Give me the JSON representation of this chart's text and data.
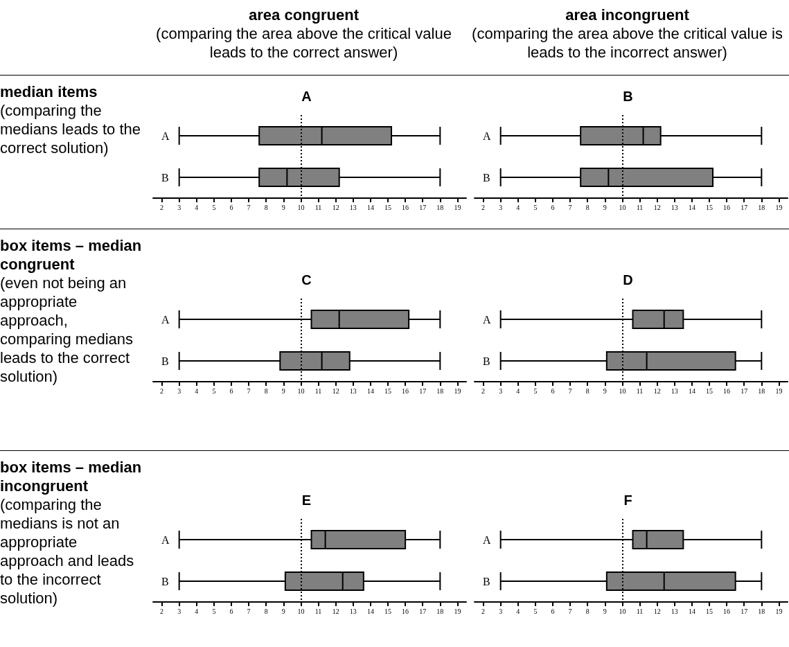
{
  "chart_data": [
    {
      "type": "box",
      "title": "A",
      "categories": [
        "A",
        "B"
      ],
      "orientation": "horizontal",
      "xlim": [
        1.5,
        19.5
      ],
      "xticks": [
        2,
        3,
        4,
        5,
        6,
        7,
        8,
        9,
        10,
        11,
        12,
        13,
        14,
        15,
        16,
        17,
        18,
        19
      ],
      "series": [
        {
          "color": "#808080",
          "boxes": [
            {
              "low": 3,
              "q1": 7.6,
              "median": 11.2,
              "q3": 15.2,
              "high": 18
            },
            {
              "low": 3,
              "q1": 7.6,
              "median": 9.2,
              "q3": 12.2,
              "high": 18
            }
          ]
        }
      ],
      "ref_lines": [
        {
          "axis": "x",
          "value": 10,
          "color": "#000000",
          "line_style": "dotted"
        }
      ],
      "annotations": [
        "area congruent\n(comparing the area above the critical value leads to the correct answer)",
        "median items\n(comparing the medians leads to the correct solution)"
      ]
    },
    {
      "type": "box",
      "title": "B",
      "categories": [
        "A",
        "B"
      ],
      "orientation": "horizontal",
      "xlim": [
        1.5,
        19.5
      ],
      "xticks": [
        2,
        3,
        4,
        5,
        6,
        7,
        8,
        9,
        10,
        11,
        12,
        13,
        14,
        15,
        16,
        17,
        18,
        19
      ],
      "series": [
        {
          "color": "#808080",
          "boxes": [
            {
              "low": 3,
              "q1": 7.6,
              "median": 11.2,
              "q3": 12.2,
              "high": 18
            },
            {
              "low": 3,
              "q1": 7.6,
              "median": 9.2,
              "q3": 15.2,
              "high": 18
            }
          ]
        }
      ],
      "ref_lines": [
        {
          "axis": "x",
          "value": 10,
          "color": "#000000",
          "line_style": "dotted"
        }
      ],
      "annotations": [
        "area incongruent\n(comparing the area above the critical value is leads to the incorrect answer)"
      ]
    },
    {
      "type": "box",
      "title": "C",
      "categories": [
        "A",
        "B"
      ],
      "orientation": "horizontal",
      "xlim": [
        1.5,
        19.5
      ],
      "xticks": [
        2,
        3,
        4,
        5,
        6,
        7,
        8,
        9,
        10,
        11,
        12,
        13,
        14,
        15,
        16,
        17,
        18,
        19
      ],
      "series": [
        {
          "color": "#808080",
          "boxes": [
            {
              "low": 3,
              "q1": 10.6,
              "median": 12.2,
              "q3": 16.2,
              "high": 18
            },
            {
              "low": 3,
              "q1": 8.8,
              "median": 11.2,
              "q3": 12.8,
              "high": 18
            }
          ]
        }
      ],
      "ref_lines": [
        {
          "axis": "x",
          "value": 10,
          "color": "#000000",
          "line_style": "dotted"
        }
      ],
      "annotations": [
        "box items – median congruent\n(even not being an appropriate approach, comparing medians leads to the correct solution)"
      ]
    },
    {
      "type": "box",
      "title": "D",
      "categories": [
        "A",
        "B"
      ],
      "orientation": "horizontal",
      "xlim": [
        1.5,
        19.5
      ],
      "xticks": [
        2,
        3,
        4,
        5,
        6,
        7,
        8,
        9,
        10,
        11,
        12,
        13,
        14,
        15,
        16,
        17,
        18,
        19
      ],
      "series": [
        {
          "color": "#808080",
          "boxes": [
            {
              "low": 3,
              "q1": 10.6,
              "median": 12.4,
              "q3": 13.5,
              "high": 18
            },
            {
              "low": 3,
              "q1": 9.1,
              "median": 11.4,
              "q3": 16.5,
              "high": 18
            }
          ]
        }
      ],
      "ref_lines": [
        {
          "axis": "x",
          "value": 10,
          "color": "#000000",
          "line_style": "dotted"
        }
      ]
    },
    {
      "type": "box",
      "title": "E",
      "categories": [
        "A",
        "B"
      ],
      "orientation": "horizontal",
      "xlim": [
        1.5,
        19.5
      ],
      "xticks": [
        2,
        3,
        4,
        5,
        6,
        7,
        8,
        9,
        10,
        11,
        12,
        13,
        14,
        15,
        16,
        17,
        18,
        19
      ],
      "series": [
        {
          "color": "#808080",
          "boxes": [
            {
              "low": 3,
              "q1": 10.6,
              "median": 11.4,
              "q3": 16.0,
              "high": 18
            },
            {
              "low": 3,
              "q1": 9.1,
              "median": 12.4,
              "q3": 13.6,
              "high": 18
            }
          ]
        }
      ],
      "ref_lines": [
        {
          "axis": "x",
          "value": 10,
          "color": "#000000",
          "line_style": "dotted"
        }
      ],
      "annotations": [
        "box items – median incongruent\n(comparing the medians is not an appropriate approach and leads to the incorrect solution)"
      ]
    },
    {
      "type": "box",
      "title": "F",
      "categories": [
        "A",
        "B"
      ],
      "orientation": "horizontal",
      "xlim": [
        1.5,
        19.5
      ],
      "xticks": [
        2,
        3,
        4,
        5,
        6,
        7,
        8,
        9,
        10,
        11,
        12,
        13,
        14,
        15,
        16,
        17,
        18,
        19
      ],
      "series": [
        {
          "color": "#808080",
          "boxes": [
            {
              "low": 3,
              "q1": 10.6,
              "median": 11.4,
              "q3": 13.5,
              "high": 18
            },
            {
              "low": 3,
              "q1": 9.1,
              "median": 12.4,
              "q3": 16.5,
              "high": 18
            }
          ]
        }
      ],
      "ref_lines": [
        {
          "axis": "x",
          "value": 10,
          "color": "#000000",
          "line_style": "dotted"
        }
      ]
    }
  ]
}
